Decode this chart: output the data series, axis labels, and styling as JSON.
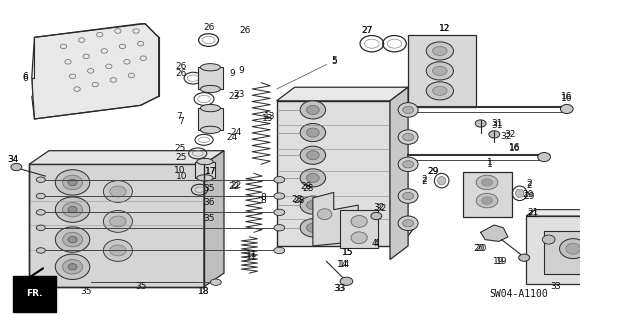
{
  "bg_color": "#ffffff",
  "diagram_id": "SW04-A1100",
  "lc": "#2a2a2a",
  "tc": "#111111",
  "fs": 6.5,
  "fs_code": 7.0
}
